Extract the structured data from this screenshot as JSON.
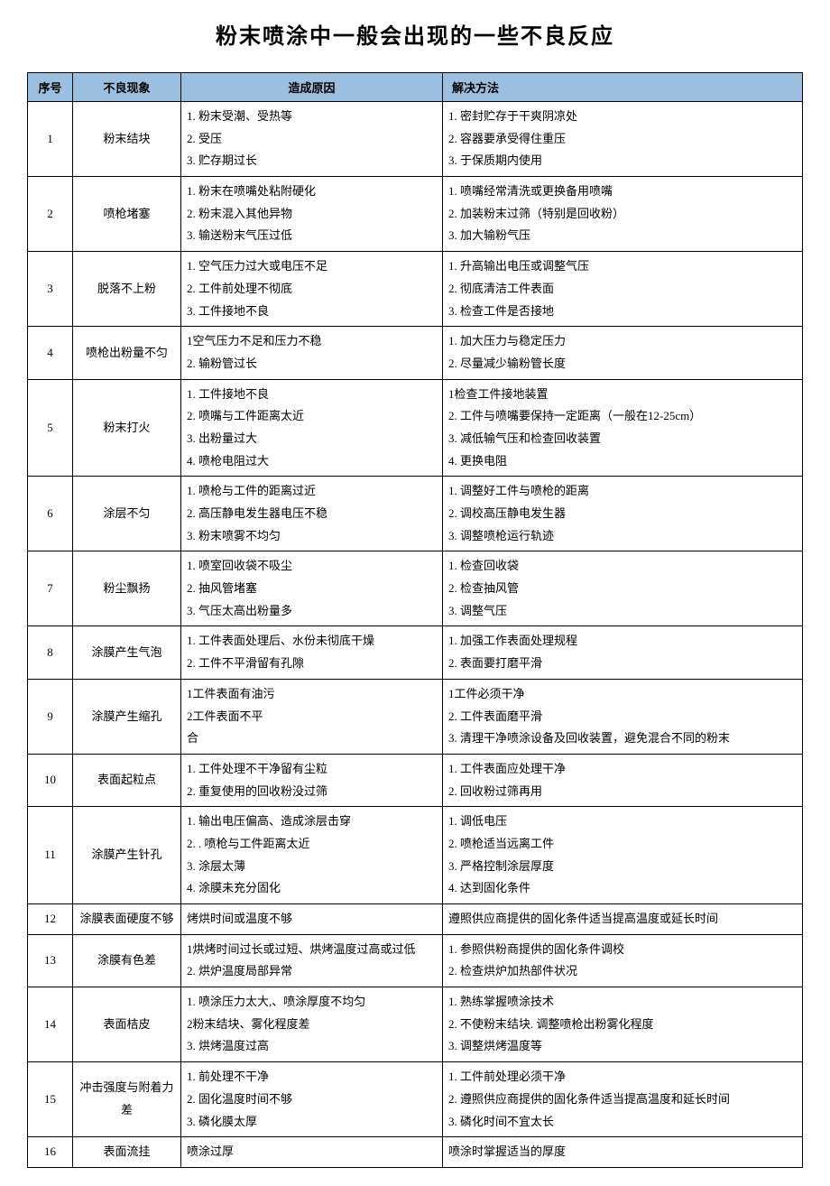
{
  "title": "粉末喷涂中一般会出现的一些不良反应",
  "colors": {
    "header_bg": "#9bbfe0",
    "border": "#000000",
    "text": "#000000",
    "background": "#ffffff"
  },
  "fontsize": {
    "title": 24,
    "body": 13
  },
  "headers": {
    "seq": "序号",
    "phenomenon": "不良现象",
    "cause": "造成原因",
    "solution": "解决方法"
  },
  "rows": [
    {
      "seq": "1",
      "phenomenon": "粉末结块",
      "cause": "1. 粉末受潮、受热等\n2. 受压\n3. 贮存期过长",
      "solution": "1. 密封贮存于干爽阴凉处\n2. 容器要承受得住重压\n3. 于保质期内使用"
    },
    {
      "seq": "2",
      "phenomenon": "喷枪堵塞",
      "cause": "1. 粉末在喷嘴处粘附硬化\n2. 粉末混入其他异物\n3. 输送粉末气压过低",
      "solution": "1. 喷嘴经常清洗或更换备用喷嘴\n2. 加装粉末过筛（特别是回收粉）\n3. 加大输粉气压"
    },
    {
      "seq": "3",
      "phenomenon": "脱落不上粉",
      "cause": "1. 空气压力过大或电压不足\n2. 工件前处理不彻底\n3. 工件接地不良",
      "solution": "1. 升高输出电压或调整气压\n2. 彻底清洁工件表面\n3. 检查工件是否接地"
    },
    {
      "seq": "4",
      "phenomenon": "喷枪出粉量不匀",
      "cause": "1空气压力不足和压力不稳\n2. 输粉管过长",
      "solution": "1. 加大压力与稳定压力\n2. 尽量减少输粉管长度"
    },
    {
      "seq": "5",
      "phenomenon": "粉末打火",
      "cause": "1. 工件接地不良\n2. 喷嘴与工件距离太近\n3. 出粉量过大\n4. 喷枪电阻过大",
      "solution": "1检查工件接地装置\n2. 工件与喷嘴要保持一定距离（一般在12-25cm）\n3. 减低输气压和检查回收装置\n4. 更换电阻"
    },
    {
      "seq": "6",
      "phenomenon": "涂层不匀",
      "cause": "1. 喷枪与工件的距离过近\n2. 高压静电发生器电压不稳\n3. 粉末喷雾不均匀",
      "solution": "1. 调整好工件与喷枪的距离\n2. 调校高压静电发生器\n3. 调整喷枪运行轨迹"
    },
    {
      "seq": "7",
      "phenomenon": "粉尘飘扬",
      "cause": "1. 喷室回收袋不吸尘\n2. 抽风管堵塞\n3. 气压太高出粉量多",
      "solution": "1. 检查回收袋\n2. 检查抽风管\n3. 调整气压"
    },
    {
      "seq": "8",
      "phenomenon": "涂膜产生气泡",
      "cause": "1. 工件表面处理后、水份未彻底干燥\n2. 工件不平滑留有孔隙",
      "solution": "1. 加强工作表面处理规程\n2. 表面要打磨平滑"
    },
    {
      "seq": "9",
      "phenomenon": "涂膜产生缩孔",
      "cause": "1工件表面有油污\n2工件表面不平\n合",
      "solution": "1工件必须干净\n2. 工件表面磨平滑\n3. 清理干净喷涂设备及回收装置，避免混合不同的粉末"
    },
    {
      "seq": "10",
      "phenomenon": "表面起粒点",
      "cause": "1. 工件处理不干净留有尘粒\n2. 重复使用的回收粉没过筛",
      "solution": "1. 工件表面应处理干净\n2. 回收粉过筛再用"
    },
    {
      "seq": "11",
      "phenomenon": "涂膜产生针孔",
      "cause": "1. 输出电压偏高、造成涂层击穿\n2. . 喷枪与工件距离太近\n3. 涂层太薄\n4. 涂膜未充分固化",
      "solution": "1. 调低电压\n2. 喷枪适当远离工件\n3. 严格控制涂层厚度\n4. 达到固化条件"
    },
    {
      "seq": "12",
      "phenomenon": "涂膜表面硬度不够",
      "cause": "烤烘时间或温度不够",
      "solution": "遵照供应商提供的固化条件适当提高温度或延长时间"
    },
    {
      "seq": "13",
      "phenomenon": "涂膜有色差",
      "cause": "1烘烤时间过长或过短、烘烤温度过高或过低\n2. 烘炉温度局部异常",
      "solution": "1. 参照供粉商提供的固化条件调校\n2. 检查烘炉加热部件状况"
    },
    {
      "seq": "14",
      "phenomenon": "表面桔皮",
      "cause": "1. 喷涂压力太大,、喷涂厚度不均匀\n2粉末结块、雾化程度差\n3. 烘烤温度过高",
      "solution": "1. 熟练掌握喷涂技术\n2. 不使粉末结块. 调整喷枪出粉雾化程度\n3. 调整烘烤温度等"
    },
    {
      "seq": "15",
      "phenomenon": "冲击强度与附着力差",
      "cause": "1. 前处理不干净\n2. 固化温度时间不够\n3. 磷化膜太厚",
      "solution": "1. 工件前处理必须干净\n2. 遵照供应商提供的固化条件适当提高温度和延长时间\n3. 磷化时间不宜太长"
    },
    {
      "seq": "16",
      "phenomenon": "表面流挂",
      "cause": "喷涂过厚",
      "solution": "喷涂时掌握适当的厚度"
    }
  ]
}
